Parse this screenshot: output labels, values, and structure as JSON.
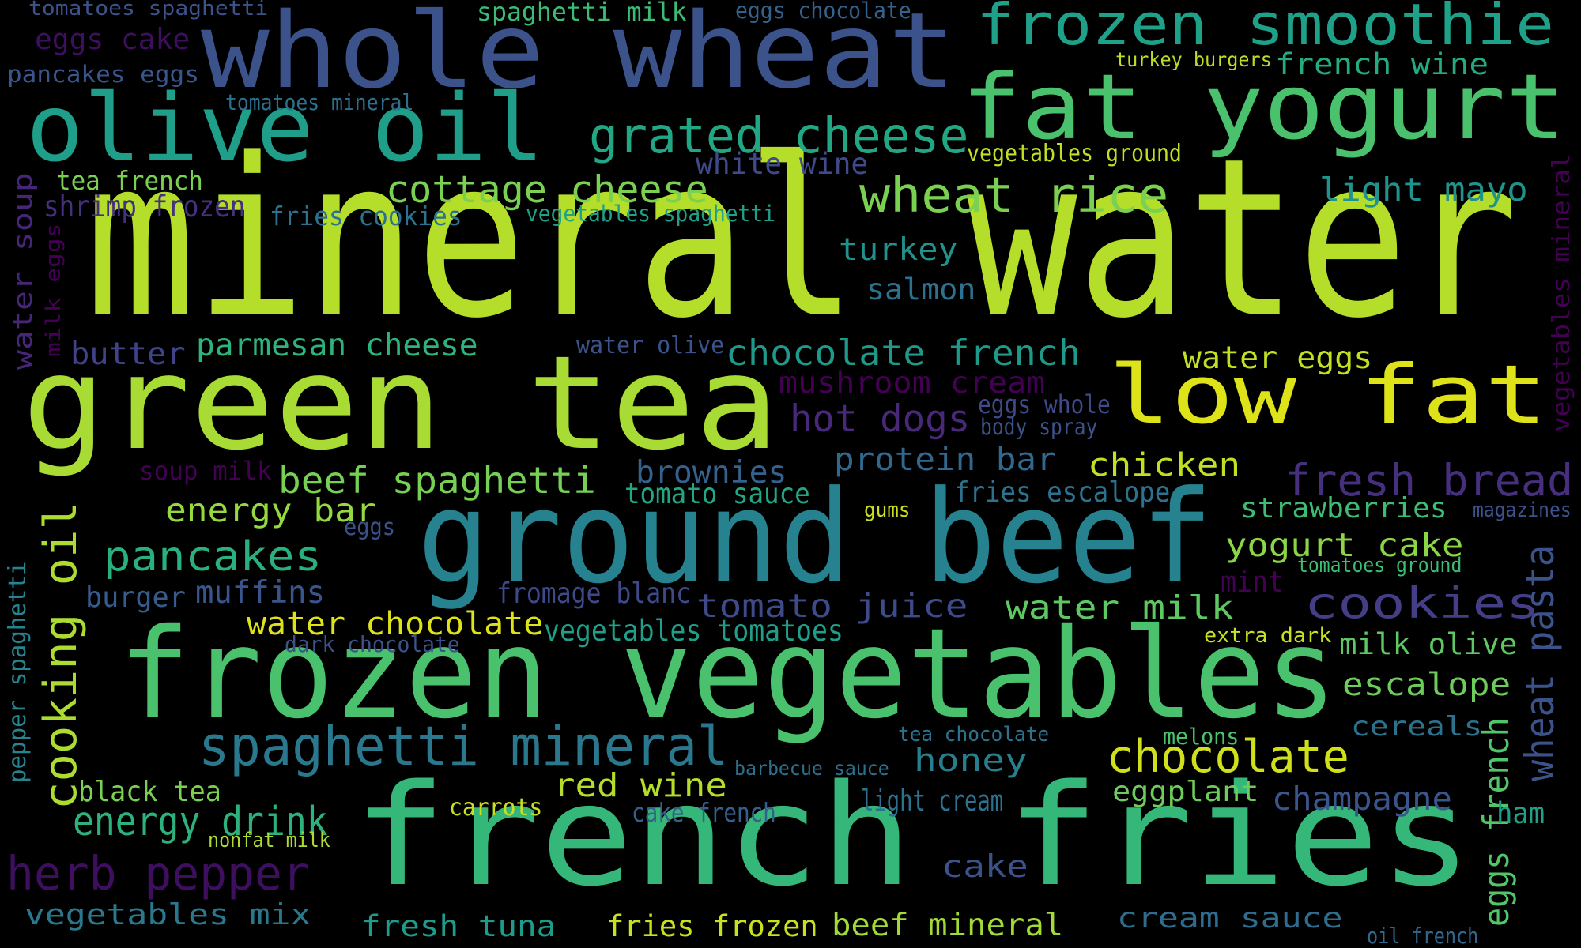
{
  "words": [
    {
      "text": "mineral water",
      "color": "#b5de2b"
    },
    {
      "text": "green tea",
      "color": "#a8db34"
    },
    {
      "text": "french fries",
      "color": "#35b779"
    },
    {
      "text": "frozen vegetables",
      "color": "#4ac16d"
    },
    {
      "text": "ground beef",
      "color": "#26828e"
    },
    {
      "text": "whole wheat",
      "color": "#3b528b"
    },
    {
      "text": "fat yogurt",
      "color": "#4ac16d"
    },
    {
      "text": "low fat",
      "color": "#dde318"
    },
    {
      "text": "olive oil",
      "color": "#1f9e89"
    },
    {
      "text": "frozen smoothie",
      "color": "#1fa088"
    },
    {
      "text": "grated cheese",
      "color": "#22a785"
    },
    {
      "text": "spaghetti mineral",
      "color": "#2a788e"
    },
    {
      "text": "cooking oil",
      "color": "#addc30"
    },
    {
      "text": "chocolate",
      "color": "#d0e11c"
    },
    {
      "text": "cottage cheese",
      "color": "#7ad151"
    },
    {
      "text": "wheat rice",
      "color": "#7ad151"
    },
    {
      "text": "herb pepper",
      "color": "#3e0e5f"
    },
    {
      "text": "fresh bread",
      "color": "#46307e"
    },
    {
      "text": "cookies",
      "color": "#433e85"
    },
    {
      "text": "energy drink",
      "color": "#2db27d"
    },
    {
      "text": "pancakes",
      "color": "#2ab07f"
    },
    {
      "text": "beef spaghetti",
      "color": "#75d054"
    },
    {
      "text": "chocolate french",
      "color": "#1f998a"
    },
    {
      "text": "light mayo",
      "color": "#20938c"
    },
    {
      "text": "tomato juice",
      "color": "#3e4a89"
    },
    {
      "text": "water milk",
      "color": "#5ec962"
    },
    {
      "text": "yogurt cake",
      "color": "#8bd646"
    },
    {
      "text": "escalope",
      "color": "#6ccd5a"
    },
    {
      "text": "fresh tuna",
      "color": "#1e9b8a"
    },
    {
      "text": "fries frozen",
      "color": "#c8e020"
    },
    {
      "text": "beef mineral",
      "color": "#a2da37"
    },
    {
      "text": "vegetables mix",
      "color": "#2a788e"
    },
    {
      "text": "honey",
      "color": "#277f8e"
    },
    {
      "text": "red wine",
      "color": "#b5de2b"
    },
    {
      "text": "champagne",
      "color": "#3a548c"
    },
    {
      "text": "cream sauce",
      "color": "#2f6c8e"
    },
    {
      "text": "water chocolate",
      "color": "#dde318"
    },
    {
      "text": "hot dogs",
      "color": "#482878"
    },
    {
      "text": "protein bar",
      "color": "#31688e"
    },
    {
      "text": "chicken",
      "color": "#c2df23"
    },
    {
      "text": "brownies",
      "color": "#34618d"
    },
    {
      "text": "turkey",
      "color": "#21918c"
    },
    {
      "text": "salmon",
      "color": "#2c728e"
    },
    {
      "text": "parmesan cheese",
      "color": "#2eb37c"
    },
    {
      "text": "butter",
      "color": "#404387"
    },
    {
      "text": "water eggs",
      "color": "#c2df23"
    },
    {
      "text": "mushroom cream",
      "color": "#440154"
    },
    {
      "text": "energy bar",
      "color": "#95d840"
    },
    {
      "text": "muffins",
      "color": "#39568c"
    },
    {
      "text": "burger",
      "color": "#365c8d"
    },
    {
      "text": "black tea",
      "color": "#7ad151"
    },
    {
      "text": "cake",
      "color": "#3b528b"
    },
    {
      "text": "light cream",
      "color": "#2c728e"
    },
    {
      "text": "milk olive",
      "color": "#5ec962"
    },
    {
      "text": "strawberries",
      "color": "#3dbc74"
    },
    {
      "text": "wheat pasta",
      "color": "#3b528b"
    },
    {
      "text": "eggs french",
      "color": "#52c569"
    },
    {
      "text": "pepper spaghetti",
      "color": "#25848e"
    },
    {
      "text": "water soup",
      "color": "#482677"
    },
    {
      "text": "milk eggs",
      "color": "#440154"
    },
    {
      "text": "vegetables mineral",
      "color": "#440154"
    },
    {
      "text": "eggs cake",
      "color": "#3e0e5f"
    },
    {
      "text": "pancakes eggs",
      "color": "#39568c"
    },
    {
      "text": "tomatoes spaghetti",
      "color": "#3b528b"
    },
    {
      "text": "spaghetti milk",
      "color": "#3cbb75"
    },
    {
      "text": "eggs chocolate",
      "color": "#33638d"
    },
    {
      "text": "turkey burgers",
      "color": "#bade28"
    },
    {
      "text": "french wine",
      "color": "#25ab82"
    },
    {
      "text": "tomatoes mineral",
      "color": "#2d708e"
    },
    {
      "text": "white wine",
      "color": "#3e4a89"
    },
    {
      "text": "vegetables ground",
      "color": "#c2df23"
    },
    {
      "text": "tea french",
      "color": "#7ad151"
    },
    {
      "text": "shrimp frozen",
      "color": "#46307e"
    },
    {
      "text": "fries cookies",
      "color": "#2c728e"
    },
    {
      "text": "vegetables spaghetti",
      "color": "#1fa188"
    },
    {
      "text": "water olive",
      "color": "#3b528b"
    },
    {
      "text": "eggs whole",
      "color": "#3e4a89"
    },
    {
      "text": "body spray",
      "color": "#3b528b"
    },
    {
      "text": "soup milk",
      "color": "#440154"
    },
    {
      "text": "tomato sauce",
      "color": "#22a785"
    },
    {
      "text": "fries escalope",
      "color": "#2c728e"
    },
    {
      "text": "gums",
      "color": "#c8e020"
    },
    {
      "text": "magazines",
      "color": "#3b528b"
    },
    {
      "text": "eggs",
      "color": "#3b528b"
    },
    {
      "text": "fromage blanc",
      "color": "#3e4989"
    },
    {
      "text": "mint",
      "color": "#440154"
    },
    {
      "text": "tomatoes ground",
      "color": "#3dbc74"
    },
    {
      "text": "vegetables tomatoes",
      "color": "#1f9e89"
    },
    {
      "text": "dark chocolate",
      "color": "#3b528b"
    },
    {
      "text": "extra dark",
      "color": "#c8e020"
    },
    {
      "text": "cereals",
      "color": "#2c728e"
    },
    {
      "text": "tea chocolate",
      "color": "#2c728e"
    },
    {
      "text": "melons",
      "color": "#4ac16d"
    },
    {
      "text": "barbecue sauce",
      "color": "#2d708e"
    },
    {
      "text": "eggplant",
      "color": "#6ccd5a"
    },
    {
      "text": "carrots",
      "color": "#c8e020"
    },
    {
      "text": "cake french",
      "color": "#355f8d"
    },
    {
      "text": "nonfat milk",
      "color": "#addc30"
    },
    {
      "text": "ham",
      "color": "#1fa088"
    },
    {
      "text": "oil french",
      "color": "#31688e"
    }
  ]
}
